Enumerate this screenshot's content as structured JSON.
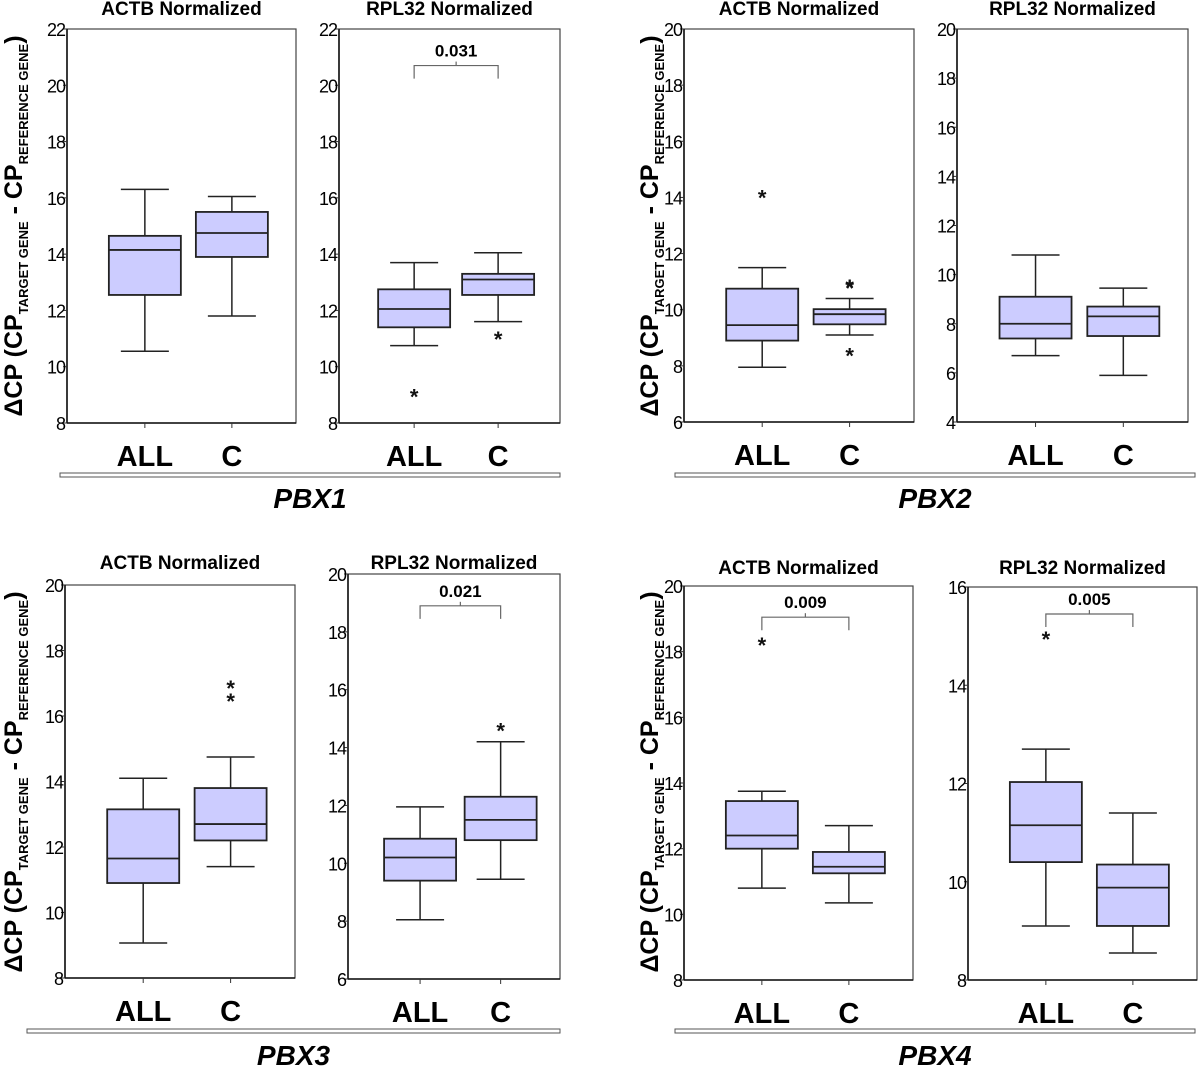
{
  "figure": {
    "y_axis_label": {
      "prefix": "ΔCP (CP",
      "sub1": "TARGET GENE",
      "mid": " - CP",
      "sub2": "REFERENCE GENE",
      "suffix": ")"
    },
    "box_fill": "#ccccff",
    "box_stroke": "#222222"
  },
  "chart_data": [
    {
      "type": "box",
      "gene": "PBX1",
      "title": "ACTB Normalized",
      "categories": [
        "ALL",
        "C"
      ],
      "ylim": [
        8,
        22
      ],
      "yticks": [
        8,
        10,
        12,
        14,
        16,
        18,
        20,
        22
      ],
      "pvalue": null,
      "boxes": [
        {
          "name": "ALL",
          "whisker_low": 10.55,
          "q1": 12.55,
          "median": 14.15,
          "q3": 14.65,
          "whisker_high": 16.3,
          "outliers": []
        },
        {
          "name": "C",
          "whisker_low": 11.8,
          "q1": 13.9,
          "median": 14.75,
          "q3": 15.5,
          "whisker_high": 16.05,
          "outliers": []
        }
      ]
    },
    {
      "type": "box",
      "gene": "PBX1",
      "title": "RPL32 Normalized",
      "categories": [
        "ALL",
        "C"
      ],
      "ylim": [
        8,
        22
      ],
      "yticks": [
        8,
        10,
        12,
        14,
        16,
        18,
        20,
        22
      ],
      "pvalue": "0.031",
      "bracket_y": 20.7,
      "boxes": [
        {
          "name": "ALL",
          "whisker_low": 10.75,
          "q1": 11.4,
          "median": 12.05,
          "q3": 12.75,
          "whisker_high": 13.7,
          "outliers": [
            9.05
          ]
        },
        {
          "name": "C",
          "whisker_low": 11.6,
          "q1": 12.55,
          "median": 13.1,
          "q3": 13.3,
          "whisker_high": 14.05,
          "outliers": [
            11.1
          ]
        }
      ]
    },
    {
      "type": "box",
      "gene": "PBX2",
      "title": "ACTB Normalized",
      "categories": [
        "ALL",
        "C"
      ],
      "ylim": [
        6,
        20
      ],
      "yticks": [
        6,
        8,
        10,
        12,
        14,
        16,
        18,
        20
      ],
      "pvalue": null,
      "boxes": [
        {
          "name": "ALL",
          "whisker_low": 7.95,
          "q1": 8.9,
          "median": 9.45,
          "q3": 10.75,
          "whisker_high": 11.5,
          "outliers": [
            14.1
          ]
        },
        {
          "name": "C",
          "whisker_low": 9.1,
          "q1": 9.48,
          "median": 9.84,
          "q3": 10.02,
          "whisker_high": 10.4,
          "outliers": [
            10.88,
            10.92,
            8.47
          ]
        }
      ]
    },
    {
      "type": "box",
      "gene": "PBX2",
      "title": "RPL32 Normalized",
      "categories": [
        "ALL",
        "C"
      ],
      "ylim": [
        4,
        20
      ],
      "yticks": [
        4,
        6,
        8,
        10,
        12,
        14,
        16,
        18,
        20
      ],
      "pvalue": null,
      "boxes": [
        {
          "name": "ALL",
          "whisker_low": 6.7,
          "q1": 7.4,
          "median": 8.0,
          "q3": 9.1,
          "whisker_high": 10.8,
          "outliers": []
        },
        {
          "name": "C",
          "whisker_low": 5.9,
          "q1": 7.5,
          "median": 8.3,
          "q3": 8.7,
          "whisker_high": 9.45,
          "outliers": []
        }
      ]
    },
    {
      "type": "box",
      "gene": "PBX3",
      "title": "ACTB Normalized",
      "categories": [
        "ALL",
        "C"
      ],
      "ylim": [
        8,
        20
      ],
      "yticks": [
        8,
        10,
        12,
        14,
        16,
        18,
        20
      ],
      "pvalue": null,
      "boxes": [
        {
          "name": "ALL",
          "whisker_low": 9.07,
          "q1": 10.9,
          "median": 11.65,
          "q3": 13.15,
          "whisker_high": 14.1,
          "outliers": []
        },
        {
          "name": "C",
          "whisker_low": 11.4,
          "q1": 12.2,
          "median": 12.7,
          "q3": 13.8,
          "whisker_high": 14.75,
          "outliers": [
            16.55,
            16.95
          ]
        }
      ]
    },
    {
      "type": "box",
      "gene": "PBX3",
      "title": "RPL32 Normalized",
      "categories": [
        "ALL",
        "C"
      ],
      "ylim": [
        6,
        20
      ],
      "yticks": [
        6,
        8,
        10,
        12,
        14,
        16,
        18,
        20
      ],
      "pvalue": "0.021",
      "bracket_y": 18.9,
      "boxes": [
        {
          "name": "ALL",
          "whisker_low": 8.05,
          "q1": 9.4,
          "median": 10.2,
          "q3": 10.85,
          "whisker_high": 11.95,
          "outliers": []
        },
        {
          "name": "C",
          "whisker_low": 9.45,
          "q1": 10.8,
          "median": 11.5,
          "q3": 12.3,
          "whisker_high": 14.2,
          "outliers": [
            14.7
          ]
        }
      ]
    },
    {
      "type": "box",
      "gene": "PBX4",
      "title": "ACTB Normalized",
      "categories": [
        "ALL",
        "C"
      ],
      "ylim": [
        8,
        20
      ],
      "yticks": [
        8,
        10,
        12,
        14,
        16,
        18,
        20
      ],
      "pvalue": "0.009",
      "bracket_y": 19.05,
      "boxes": [
        {
          "name": "ALL",
          "whisker_low": 10.8,
          "q1": 12.0,
          "median": 12.4,
          "q3": 13.45,
          "whisker_high": 13.75,
          "outliers": [
            18.3
          ]
        },
        {
          "name": "C",
          "whisker_low": 10.35,
          "q1": 11.25,
          "median": 11.45,
          "q3": 11.9,
          "whisker_high": 12.7,
          "outliers": []
        }
      ]
    },
    {
      "type": "box",
      "gene": "PBX4",
      "title": "RPL32 Normalized",
      "categories": [
        "ALL",
        "C"
      ],
      "ylim": [
        8,
        16
      ],
      "yticks": [
        8,
        10,
        12,
        14,
        16
      ],
      "pvalue": "0.005",
      "bracket_y": 15.45,
      "boxes": [
        {
          "name": "ALL",
          "whisker_low": 9.1,
          "q1": 10.4,
          "median": 11.15,
          "q3": 12.03,
          "whisker_high": 12.7,
          "outliers": [
            15.0
          ]
        },
        {
          "name": "C",
          "whisker_low": 8.55,
          "q1": 9.1,
          "median": 9.88,
          "q3": 10.35,
          "whisker_high": 11.4,
          "outliers": []
        }
      ]
    }
  ]
}
